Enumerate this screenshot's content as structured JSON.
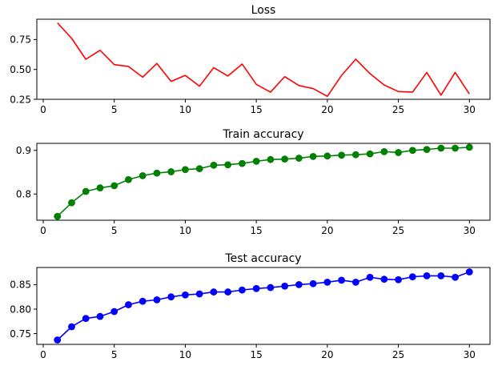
{
  "chart_data": [
    {
      "type": "line",
      "title": "Loss",
      "xlabel": "",
      "ylabel": "",
      "xlim": [
        -0.45,
        31.45
      ],
      "ylim": [
        0.25,
        0.92
      ],
      "xticks": [
        0,
        5,
        10,
        15,
        20,
        25,
        30
      ],
      "yticks": [
        0.25,
        0.5,
        0.75
      ],
      "ytick_labels": [
        "0.25",
        "0.50",
        "0.75"
      ],
      "markers": false,
      "color": "#ff0000",
      "grid": false,
      "x": [
        1,
        2,
        3,
        4,
        5,
        6,
        7,
        8,
        9,
        10,
        11,
        12,
        13,
        14,
        15,
        16,
        17,
        18,
        19,
        20,
        21,
        22,
        23,
        24,
        25,
        26,
        27,
        28,
        29,
        30
      ],
      "series": [
        {
          "values": [
            0.89,
            0.76,
            0.585,
            0.66,
            0.54,
            0.525,
            0.435,
            0.55,
            0.4,
            0.45,
            0.36,
            0.515,
            0.445,
            0.545,
            0.375,
            0.31,
            0.44,
            0.365,
            0.34,
            0.275,
            0.45,
            0.585,
            0.465,
            0.37,
            0.315,
            0.31,
            0.475,
            0.285,
            0.475,
            0.295
          ]
        }
      ]
    },
    {
      "type": "line",
      "title": "Train accuracy",
      "xlabel": "",
      "ylabel": "",
      "xlim": [
        -0.45,
        31.45
      ],
      "ylim": [
        0.74,
        0.916
      ],
      "xticks": [
        0,
        5,
        10,
        15,
        20,
        25,
        30
      ],
      "yticks": [
        0.8,
        0.9
      ],
      "ytick_labels": [
        "0.8",
        "0.9"
      ],
      "markers": true,
      "color": "#008000",
      "grid": false,
      "x": [
        1,
        2,
        3,
        4,
        5,
        6,
        7,
        8,
        9,
        10,
        11,
        12,
        13,
        14,
        15,
        16,
        17,
        18,
        19,
        20,
        21,
        22,
        23,
        24,
        25,
        26,
        27,
        28,
        29,
        30
      ],
      "series": [
        {
          "values": [
            0.749,
            0.78,
            0.806,
            0.814,
            0.819,
            0.833,
            0.842,
            0.848,
            0.851,
            0.856,
            0.858,
            0.866,
            0.867,
            0.87,
            0.875,
            0.879,
            0.88,
            0.882,
            0.886,
            0.887,
            0.889,
            0.89,
            0.892,
            0.897,
            0.895,
            0.9,
            0.902,
            0.905,
            0.905,
            0.907
          ]
        }
      ]
    },
    {
      "type": "line",
      "title": "Test accuracy",
      "xlabel": "",
      "ylabel": "",
      "xlim": [
        -0.45,
        31.45
      ],
      "ylim": [
        0.728,
        0.885
      ],
      "xticks": [
        0,
        5,
        10,
        15,
        20,
        25,
        30
      ],
      "yticks": [
        0.75,
        0.8,
        0.85
      ],
      "ytick_labels": [
        "0.75",
        "0.80",
        "0.85"
      ],
      "markers": true,
      "color": "#0000ff",
      "grid": false,
      "x": [
        1,
        2,
        3,
        4,
        5,
        6,
        7,
        8,
        9,
        10,
        11,
        12,
        13,
        14,
        15,
        16,
        17,
        18,
        19,
        20,
        21,
        22,
        23,
        24,
        25,
        26,
        27,
        28,
        29,
        30
      ],
      "series": [
        {
          "values": [
            0.737,
            0.764,
            0.781,
            0.785,
            0.795,
            0.809,
            0.816,
            0.819,
            0.825,
            0.829,
            0.831,
            0.835,
            0.835,
            0.839,
            0.842,
            0.844,
            0.847,
            0.85,
            0.852,
            0.855,
            0.859,
            0.855,
            0.865,
            0.861,
            0.86,
            0.866,
            0.868,
            0.868,
            0.865,
            0.876
          ]
        }
      ]
    }
  ]
}
